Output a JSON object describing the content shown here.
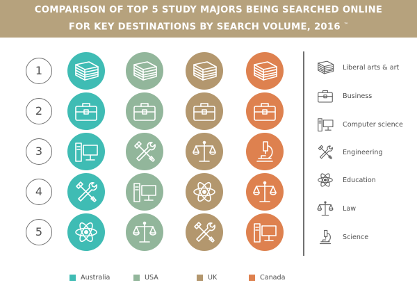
{
  "header": {
    "line1": "COMPARISON OF TOP 5 STUDY MAJORS BEING SEARCHED ONLINE",
    "line2": "FOR KEY DESTINATIONS BY SEARCH VOLUME, 2016",
    "superscript": "™"
  },
  "colors": {
    "header": "#b6a27d",
    "Australia": "#3fbcb4",
    "USA": "#92b69b",
    "UK": "#b3976e",
    "Canada": "#de814f",
    "text": "#505050"
  },
  "chart_data": {
    "type": "table",
    "title": "COMPARISON OF TOP 5 STUDY MAJORS BEING SEARCHED ONLINE FOR KEY DESTINATIONS BY SEARCH VOLUME, 2016",
    "ranks": [
      "1",
      "2",
      "3",
      "4",
      "5"
    ],
    "series": [
      {
        "name": "Australia",
        "color": "#3fbcb4",
        "values": [
          "Liberal arts & art",
          "Business",
          "Computer science",
          "Engineering",
          "Education"
        ]
      },
      {
        "name": "USA",
        "color": "#92b69b",
        "values": [
          "Liberal arts & art",
          "Business",
          "Engineering",
          "Computer science",
          "Law"
        ]
      },
      {
        "name": "UK",
        "color": "#b3976e",
        "values": [
          "Liberal arts & art",
          "Business",
          "Law",
          "Education",
          "Engineering"
        ]
      },
      {
        "name": "Canada",
        "color": "#de814f",
        "values": [
          "Liberal arts & art",
          "Business",
          "Science",
          "Law",
          "Computer science"
        ]
      }
    ],
    "key": [
      {
        "label": "Liberal arts & art",
        "icon": "books-icon"
      },
      {
        "label": "Business",
        "icon": "briefcase-icon"
      },
      {
        "label": "Computer science",
        "icon": "computer-icon"
      },
      {
        "label": "Engineering",
        "icon": "tools-icon"
      },
      {
        "label": "Education",
        "icon": "atom-icon"
      },
      {
        "label": "Law",
        "icon": "scales-icon"
      },
      {
        "label": "Science",
        "icon": "microscope-icon"
      }
    ],
    "legend_position": "bottom"
  }
}
